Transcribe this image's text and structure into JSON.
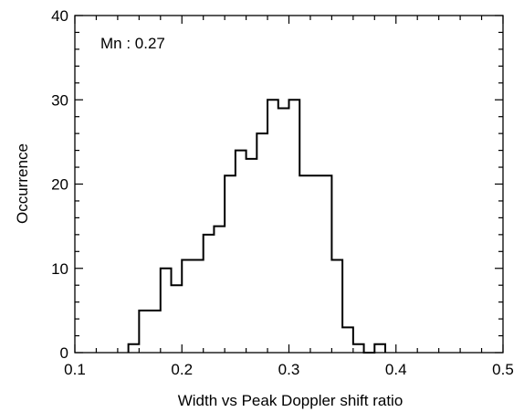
{
  "chart_data": {
    "type": "histogram",
    "title": "",
    "xlabel": "Width vs Peak Doppler shift ratio",
    "ylabel": "Occurrence",
    "xlim": [
      0.1,
      0.5
    ],
    "ylim": [
      0,
      40
    ],
    "xticks": [
      0.1,
      0.2,
      0.3,
      0.4,
      0.5
    ],
    "yticks": [
      0,
      10,
      20,
      30,
      40
    ],
    "xtick_labels": [
      "0.1",
      "0.2",
      "0.3",
      "0.4",
      "0.5"
    ],
    "ytick_labels": [
      "0",
      "10",
      "20",
      "30",
      "40"
    ],
    "annotation": "Mn : 0.27",
    "grid": false,
    "series": [
      {
        "bins": [
          {
            "x0": 0.15,
            "x1": 0.16,
            "value": 1
          },
          {
            "x0": 0.16,
            "x1": 0.17,
            "value": 5
          },
          {
            "x0": 0.17,
            "x1": 0.18,
            "value": 5
          },
          {
            "x0": 0.18,
            "x1": 0.19,
            "value": 10
          },
          {
            "x0": 0.19,
            "x1": 0.2,
            "value": 8
          },
          {
            "x0": 0.2,
            "x1": 0.21,
            "value": 11
          },
          {
            "x0": 0.21,
            "x1": 0.22,
            "value": 11
          },
          {
            "x0": 0.22,
            "x1": 0.23,
            "value": 14
          },
          {
            "x0": 0.23,
            "x1": 0.24,
            "value": 15
          },
          {
            "x0": 0.24,
            "x1": 0.25,
            "value": 21
          },
          {
            "x0": 0.25,
            "x1": 0.26,
            "value": 24
          },
          {
            "x0": 0.26,
            "x1": 0.27,
            "value": 23
          },
          {
            "x0": 0.27,
            "x1": 0.28,
            "value": 26
          },
          {
            "x0": 0.28,
            "x1": 0.29,
            "value": 30
          },
          {
            "x0": 0.29,
            "x1": 0.3,
            "value": 29
          },
          {
            "x0": 0.3,
            "x1": 0.31,
            "value": 30
          },
          {
            "x0": 0.31,
            "x1": 0.34,
            "value": 21
          },
          {
            "x0": 0.34,
            "x1": 0.35,
            "value": 11
          },
          {
            "x0": 0.35,
            "x1": 0.36,
            "value": 3
          },
          {
            "x0": 0.36,
            "x1": 0.37,
            "value": 1
          },
          {
            "x0": 0.37,
            "x1": 0.38,
            "value": 0
          },
          {
            "x0": 0.38,
            "x1": 0.39,
            "value": 1
          }
        ]
      }
    ]
  }
}
